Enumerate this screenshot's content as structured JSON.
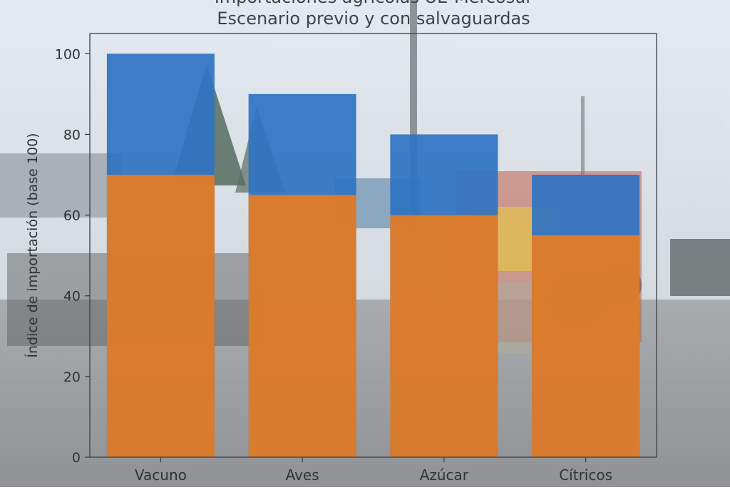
{
  "chart_data": {
    "type": "bar",
    "title": "Importaciones agrícolas UE-Mercosur",
    "subtitle": "Escenario previo y con salvaguardas",
    "ylabel": "Índice de importación (base 100)",
    "xlabel": "",
    "categories": [
      "Vacuno",
      "Aves",
      "Azúcar",
      "Cítricos"
    ],
    "ylim": [
      0,
      105
    ],
    "yticks": [
      0,
      20,
      40,
      60,
      80,
      100
    ],
    "grid": false,
    "bar_mode": "overlay",
    "series": [
      {
        "values": [
          100,
          90,
          80,
          70
        ],
        "color": "#2f73c2"
      },
      {
        "values": [
          70,
          65,
          60,
          55
        ],
        "color": "#f07c1a"
      }
    ]
  },
  "background": {
    "sky": "#cdd6df",
    "road": "#868a8e"
  }
}
